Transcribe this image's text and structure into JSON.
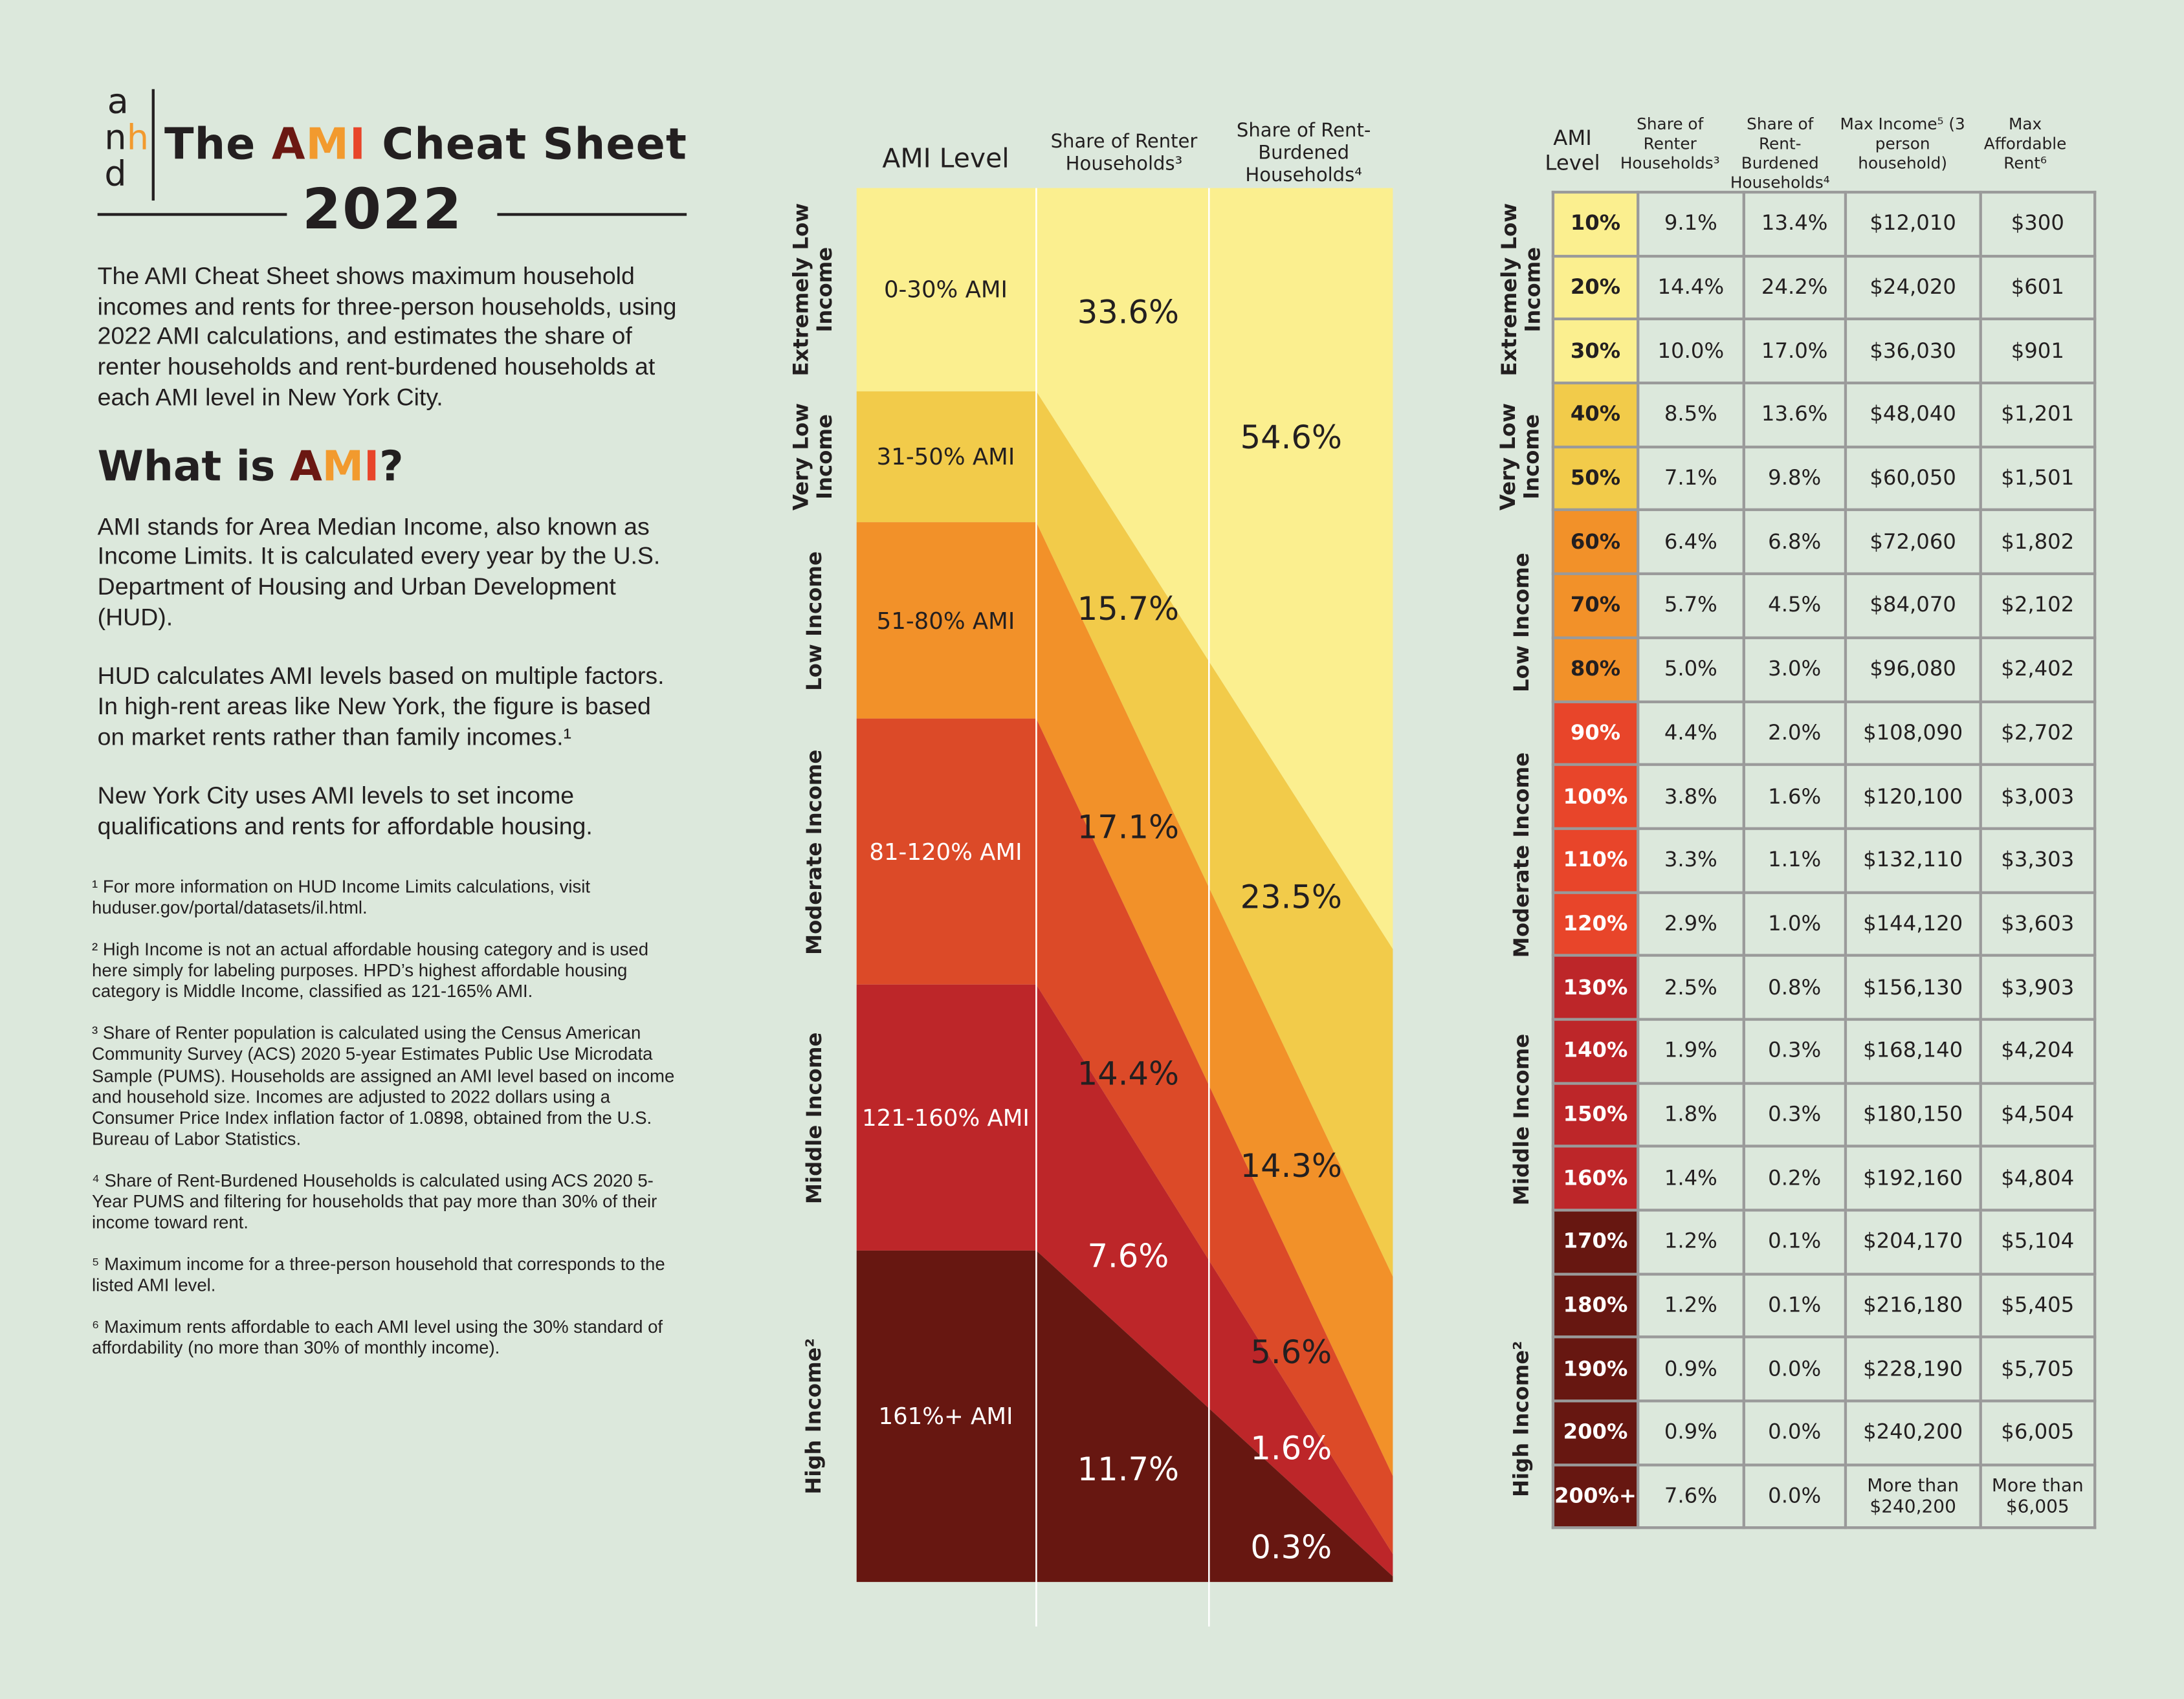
{
  "logo": {
    "letters": [
      "a",
      "h",
      "n",
      "d"
    ],
    "text": "anhd"
  },
  "title": {
    "prefix": "The ",
    "a": "A",
    "m": "M",
    "i": "I",
    "suffix": " Cheat Sheet",
    "year": "2022"
  },
  "intro": "The AMI Cheat Sheet shows maximum household incomes and rents for three-person households, using 2022 AMI calculations, and estimates the share of renter households and rent-burdened households at each AMI level in New York City.",
  "what_heading": {
    "prefix": "What is ",
    "a": "A",
    "m": "M",
    "i": "I",
    "suffix": "?"
  },
  "what_paras": [
    "AMI stands for Area Median Income, also known as Income Limits. It is calculated every year by the U.S. Department of Housing and Urban Development (HUD).",
    "HUD calculates AMI levels based on multiple factors. In high-rent areas like New York, the figure is based on market rents rather than family incomes.¹",
    "New York City uses AMI levels to set income qualifications and rents for affordable housing."
  ],
  "footnotes": [
    "¹ For more information on HUD Income Limits calculations, visit huduser.gov/portal/datasets/il.html.",
    "² High Income is not an actual affordable housing category and is used here simply for labeling purposes. HPD’s highest affordable housing category is Middle Income, classified as 121-165% AMI.",
    "³ Share of Renter population is calculated using the Census American Community Survey (ACS) 2020 5-year Estimates Public Use Microdata Sample (PUMS). Households are assigned an AMI level based on income and household size. Incomes are adjusted to 2022 dollars using a Consumer Price Index inflation factor of 1.0898, obtained from the U.S. Bureau of Labor Statistics.",
    "⁴ Share of Rent-Burdened Households is calculated using ACS 2020 5-Year PUMS and filtering for households that pay more than 30% of their income toward rent.",
    "⁵ Maximum income for a three-person household that corresponds to the listed AMI level.",
    "⁶ Maximum rents affordable to each AMI level using the 30% standard of affordability (no more than 30% of monthly income)."
  ],
  "chart_data": {
    "type": "table",
    "headers": {
      "ami_level": "AMI Level",
      "renter": "Share of Renter Households³",
      "burdened": "Share of Rent-Burdened Households⁴"
    },
    "categories": [
      "Extremely Low Income",
      "Very Low Income",
      "Low Income",
      "Moderate Income",
      "Middle Income",
      "High Income²"
    ],
    "ranges": [
      "0-30% AMI",
      "31-50% AMI",
      "51-80% AMI",
      "81-120% AMI",
      "121-160% AMI",
      "161%+ AMI"
    ],
    "renter_share": [
      "33.6%",
      "15.7%",
      "17.1%",
      "14.4%",
      "7.6%",
      "11.7%"
    ],
    "burdened_share": [
      "54.6%",
      "23.5%",
      "14.3%",
      "5.6%",
      "1.6%",
      "0.3%"
    ],
    "renter_values": [
      33.6,
      15.7,
      17.1,
      14.4,
      7.6,
      11.7
    ],
    "burdened_values": [
      54.6,
      23.5,
      14.3,
      5.6,
      1.6,
      0.3
    ],
    "colors": [
      "#fbef8f",
      "#f2cb4a",
      "#f29129",
      "#dc4a28",
      "#bd2629",
      "#671711"
    ]
  },
  "table": {
    "headers": [
      "AMI Level",
      "Share of Renter Households³",
      "Share of Rent-Burdened Households⁴",
      "Max Income⁵ (3 person household)",
      "Max Affordable Rent⁶"
    ],
    "groups": [
      {
        "label": "Extremely Low Income",
        "rows": 3,
        "color": "#fbef8f",
        "text": "#231f20"
      },
      {
        "label": "Very Low Income",
        "rows": 2,
        "color": "#f2cb4a",
        "text": "#231f20"
      },
      {
        "label": "Low Income",
        "rows": 3,
        "color": "#f29129",
        "text": "#231f20"
      },
      {
        "label": "Moderate Income",
        "rows": 4,
        "color": "#e8452a",
        "text": "#ffffff"
      },
      {
        "label": "Middle Income",
        "rows": 4,
        "color": "#bd2629",
        "text": "#ffffff"
      },
      {
        "label": "High Income²",
        "rows": 5,
        "color": "#671711",
        "text": "#ffffff"
      }
    ],
    "rows": [
      [
        "10%",
        "9.1%",
        "13.4%",
        "$12,010",
        "$300"
      ],
      [
        "20%",
        "14.4%",
        "24.2%",
        "$24,020",
        "$601"
      ],
      [
        "30%",
        "10.0%",
        "17.0%",
        "$36,030",
        "$901"
      ],
      [
        "40%",
        "8.5%",
        "13.6%",
        "$48,040",
        "$1,201"
      ],
      [
        "50%",
        "7.1%",
        "9.8%",
        "$60,050",
        "$1,501"
      ],
      [
        "60%",
        "6.4%",
        "6.8%",
        "$72,060",
        "$1,802"
      ],
      [
        "70%",
        "5.7%",
        "4.5%",
        "$84,070",
        "$2,102"
      ],
      [
        "80%",
        "5.0%",
        "3.0%",
        "$96,080",
        "$2,402"
      ],
      [
        "90%",
        "4.4%",
        "2.0%",
        "$108,090",
        "$2,702"
      ],
      [
        "100%",
        "3.8%",
        "1.6%",
        "$120,100",
        "$3,003"
      ],
      [
        "110%",
        "3.3%",
        "1.1%",
        "$132,110",
        "$3,303"
      ],
      [
        "120%",
        "2.9%",
        "1.0%",
        "$144,120",
        "$3,603"
      ],
      [
        "130%",
        "2.5%",
        "0.8%",
        "$156,130",
        "$3,903"
      ],
      [
        "140%",
        "1.9%",
        "0.3%",
        "$168,140",
        "$4,204"
      ],
      [
        "150%",
        "1.8%",
        "0.3%",
        "$180,150",
        "$4,504"
      ],
      [
        "160%",
        "1.4%",
        "0.2%",
        "$192,160",
        "$4,804"
      ],
      [
        "170%",
        "1.2%",
        "0.1%",
        "$204,170",
        "$5,104"
      ],
      [
        "180%",
        "1.2%",
        "0.1%",
        "$216,180",
        "$5,405"
      ],
      [
        "190%",
        "0.9%",
        "0.0%",
        "$228,190",
        "$5,705"
      ],
      [
        "200%",
        "0.9%",
        "0.0%",
        "$240,200",
        "$6,005"
      ],
      [
        "200%+",
        "7.6%",
        "0.0%",
        "More than $240,200",
        "More than $6,005"
      ]
    ]
  }
}
